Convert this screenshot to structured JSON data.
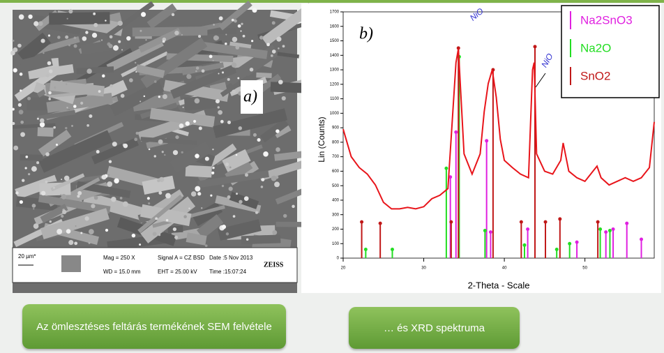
{
  "sem": {
    "label": "a)",
    "scale": "20 µm*",
    "mag": "Mag =  250 X",
    "wd": "WD = 15.0 mm",
    "signal": "Signal A = CZ BSD",
    "eht": "EHT = 25.00 kV",
    "date": "Date :5 Nov 2013",
    "time": "Time :15:07:24",
    "brand": "ZEISS"
  },
  "captions": [
    "Az ömlesztéses feltárás termékének  SEM felvétele",
    "… és XRD  spektruma"
  ],
  "chart_data": {
    "type": "line",
    "label": "b)",
    "xlabel": "2-Theta - Scale",
    "ylabel": "Lin (Counts)",
    "annotations": [
      "NiO",
      "NiO"
    ],
    "xlim": [
      20,
      58.6
    ],
    "xticks": [
      20,
      30,
      40,
      50
    ],
    "ylim": [
      0,
      1700
    ],
    "yticks": [
      0,
      100,
      200,
      300,
      400,
      500,
      600,
      700,
      800,
      900,
      1000,
      1100,
      1200,
      1300,
      1400,
      1500,
      1600,
      1700
    ],
    "x": [
      20,
      21,
      22,
      23,
      24,
      25,
      26,
      27,
      28,
      29,
      30,
      31,
      32,
      33,
      33.5,
      34,
      34.3,
      35,
      36,
      37,
      37.5,
      38,
      38.5,
      39,
      39.5,
      40,
      41,
      42,
      43,
      43.5,
      43.7,
      44,
      45,
      46,
      47,
      47.3,
      48,
      49,
      50,
      51,
      51.5,
      52,
      53,
      54,
      55,
      56,
      57,
      58,
      58.6
    ],
    "curve": {
      "color": "#e8141a",
      "values": [
        890,
        700,
        625,
        580,
        505,
        385,
        340,
        340,
        350,
        340,
        355,
        410,
        434,
        480,
        915,
        1350,
        1445,
        720,
        580,
        720,
        1010,
        1205,
        1300,
        1110,
        820,
        675,
        625,
        580,
        555,
        1300,
        1350,
        720,
        600,
        580,
        675,
        795,
        600,
        555,
        530,
        600,
        635,
        555,
        505,
        530,
        555,
        530,
        555,
        625,
        940
      ]
    },
    "series": [
      {
        "name": "Na2SnO3",
        "color": "#e020e0",
        "x": [
          33.3,
          34.0,
          37.8,
          38.3,
          42.9,
          49.0,
          52.6,
          53.5,
          55.2,
          57.0
        ],
        "values": [
          560,
          870,
          810,
          180,
          200,
          110,
          180,
          200,
          240,
          130
        ]
      },
      {
        "name": "Na2O",
        "color": "#22dd22",
        "x": [
          22.8,
          26.1,
          32.8,
          34.4,
          37.6,
          42.5,
          46.5,
          48.1,
          51.9,
          53.1
        ],
        "values": [
          60,
          60,
          620,
          1390,
          190,
          90,
          60,
          100,
          200,
          190
        ]
      },
      {
        "name": "SnO2",
        "color": "#c01818",
        "x": [
          22.3,
          24.6,
          33.4,
          34.3,
          38.6,
          42.1,
          43.8,
          45.1,
          46.9,
          51.6
        ],
        "values": [
          250,
          240,
          250,
          1450,
          1300,
          250,
          1460,
          250,
          270,
          250
        ]
      }
    ]
  }
}
